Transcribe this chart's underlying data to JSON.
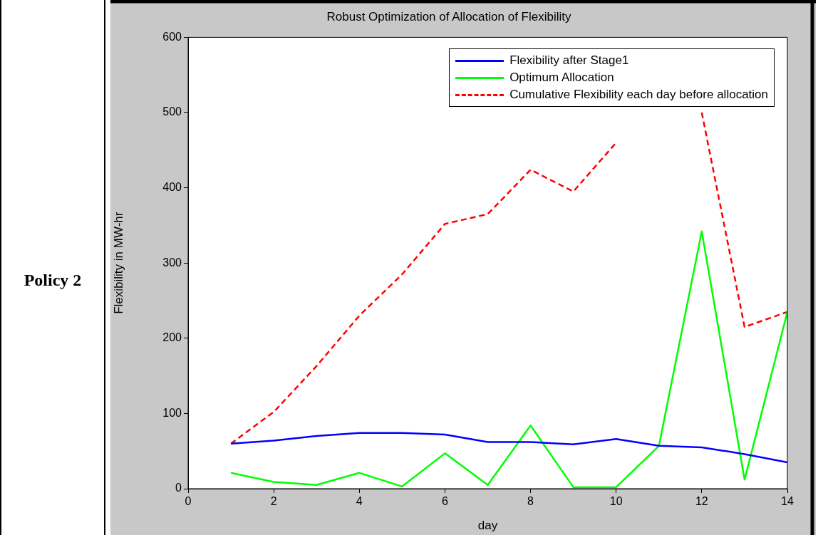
{
  "chart_data": {
    "type": "line",
    "title": "Robust Optimization of Allocation of Flexibility",
    "xlabel": "day",
    "ylabel": "Flexibility in MW-hr",
    "annotations": [
      "Policy 2"
    ],
    "x": [
      1,
      2,
      3,
      4,
      5,
      6,
      7,
      8,
      9,
      10,
      11,
      12,
      13,
      14
    ],
    "series": [
      {
        "name": "Flexibility after Stage1",
        "color": "#0000ff",
        "values": [
          60,
          64,
          70,
          74,
          74,
          72,
          62,
          62,
          59,
          66,
          57,
          55,
          46,
          35
        ]
      },
      {
        "name": "Optimum Allocation",
        "color": "#00ff00",
        "values": [
          21,
          9,
          5,
          21,
          3,
          47,
          5,
          84,
          2,
          2,
          57,
          342,
          12,
          235
        ]
      },
      {
        "name": "Cumulative Flexibility each day before allocation",
        "color": "#ff0000",
        "line_style": "dashed",
        "values": [
          60,
          102,
          163,
          230,
          285,
          352,
          365,
          424,
          395,
          460,
          null,
          500,
          215,
          235
        ]
      }
    ],
    "xlim": [
      0,
      14
    ],
    "xticks": [
      0,
      2,
      4,
      6,
      8,
      10,
      12,
      14
    ],
    "ylim": [
      0,
      600
    ],
    "yticks": [
      0,
      100,
      200,
      300,
      400,
      500,
      600
    ],
    "grid": false,
    "legend": "top right",
    "marker": "none"
  }
}
